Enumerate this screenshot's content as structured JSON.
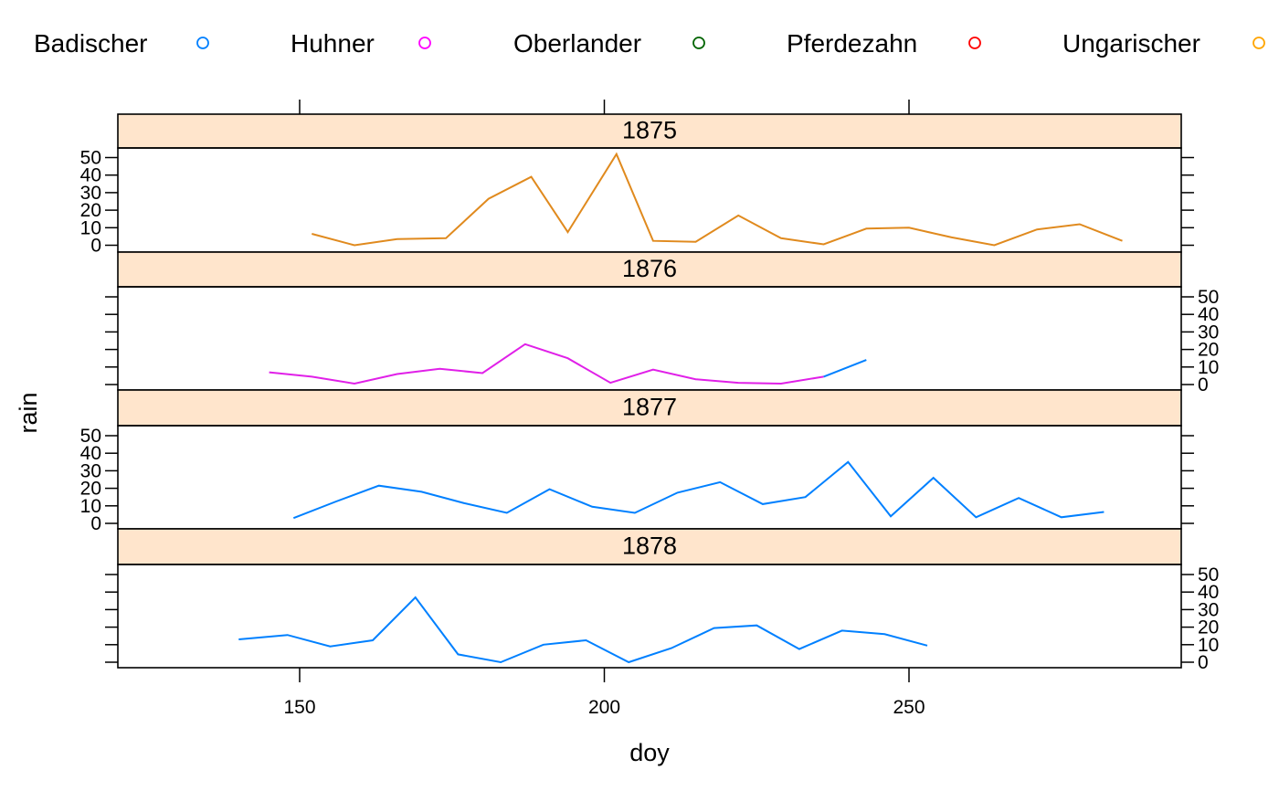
{
  "chart_data": {
    "type": "line",
    "xlabel": "doy",
    "ylabel": "rain",
    "xlim": [
      120,
      295
    ],
    "ylim": [
      -4,
      57
    ],
    "x_ticks": [
      150,
      200,
      250
    ],
    "y_ticks": [
      0,
      10,
      20,
      30,
      40,
      50
    ],
    "grid": false,
    "legend_position": "top",
    "legend": [
      {
        "name": "Badischer",
        "color": "#0080ff"
      },
      {
        "name": "Huhner",
        "color": "#ff00ff"
      },
      {
        "name": "Oberlander",
        "color": "#006400"
      },
      {
        "name": "Pferdezahn",
        "color": "#ff0000"
      },
      {
        "name": "Ungarischer",
        "color": "#ffa500"
      }
    ],
    "panels": [
      {
        "strip": "1875",
        "y_axis_side": "left",
        "series": [
          {
            "name": "Ungarischer",
            "color": "#e08a1e",
            "x": [
              152,
              159,
              166,
              174,
              181,
              188,
              194,
              202,
              208,
              215,
              222,
              229,
              236,
              243,
              250,
              257,
              264,
              271,
              278,
              285
            ],
            "y": [
              6.5,
              0,
              3.5,
              4,
              26.5,
              39,
              7.5,
              52,
              2.5,
              2,
              17,
              4,
              0.5,
              9.5,
              10,
              4.5,
              0,
              9,
              12,
              2.5
            ]
          }
        ]
      },
      {
        "strip": "1876",
        "y_axis_side": "right",
        "series": [
          {
            "name": "Huhner",
            "color": "#e020e8",
            "x": [
              145,
              152,
              159,
              166,
              173,
              180,
              187,
              194,
              201,
              208,
              215,
              222,
              229,
              236
            ],
            "y": [
              7,
              4.5,
              0.5,
              6,
              9,
              6.5,
              23,
              15,
              1,
              8.5,
              3,
              1,
              0.5,
              4.5
            ]
          },
          {
            "name": "Badischer",
            "color": "#0080ff",
            "x": [
              236,
              243
            ],
            "y": [
              4.5,
              14
            ]
          }
        ]
      },
      {
        "strip": "1877",
        "y_axis_side": "left",
        "series": [
          {
            "name": "Badischer",
            "color": "#0080ff",
            "x": [
              149,
              156,
              163,
              170,
              177,
              184,
              191,
              198,
              205,
              212,
              219,
              226,
              233,
              240,
              247,
              254,
              261,
              268,
              275,
              282
            ],
            "y": [
              3,
              12.5,
              21.5,
              18,
              11.5,
              6,
              19.5,
              9.5,
              6,
              17.5,
              23.5,
              11,
              15,
              35,
              4,
              26,
              3.5,
              14.5,
              3.5,
              6.5
            ]
          }
        ]
      },
      {
        "strip": "1878",
        "y_axis_side": "right",
        "series": [
          {
            "name": "Badischer",
            "color": "#0080ff",
            "x": [
              140,
              148,
              155,
              162,
              169,
              176,
              183,
              190,
              197,
              204,
              211,
              218,
              225,
              232,
              239,
              246,
              253
            ],
            "y": [
              13,
              15.5,
              9,
              12.5,
              37,
              4.5,
              0,
              10,
              12.5,
              0,
              8,
              19.5,
              21,
              7.5,
              18,
              16,
              9.5
            ]
          }
        ]
      }
    ]
  }
}
